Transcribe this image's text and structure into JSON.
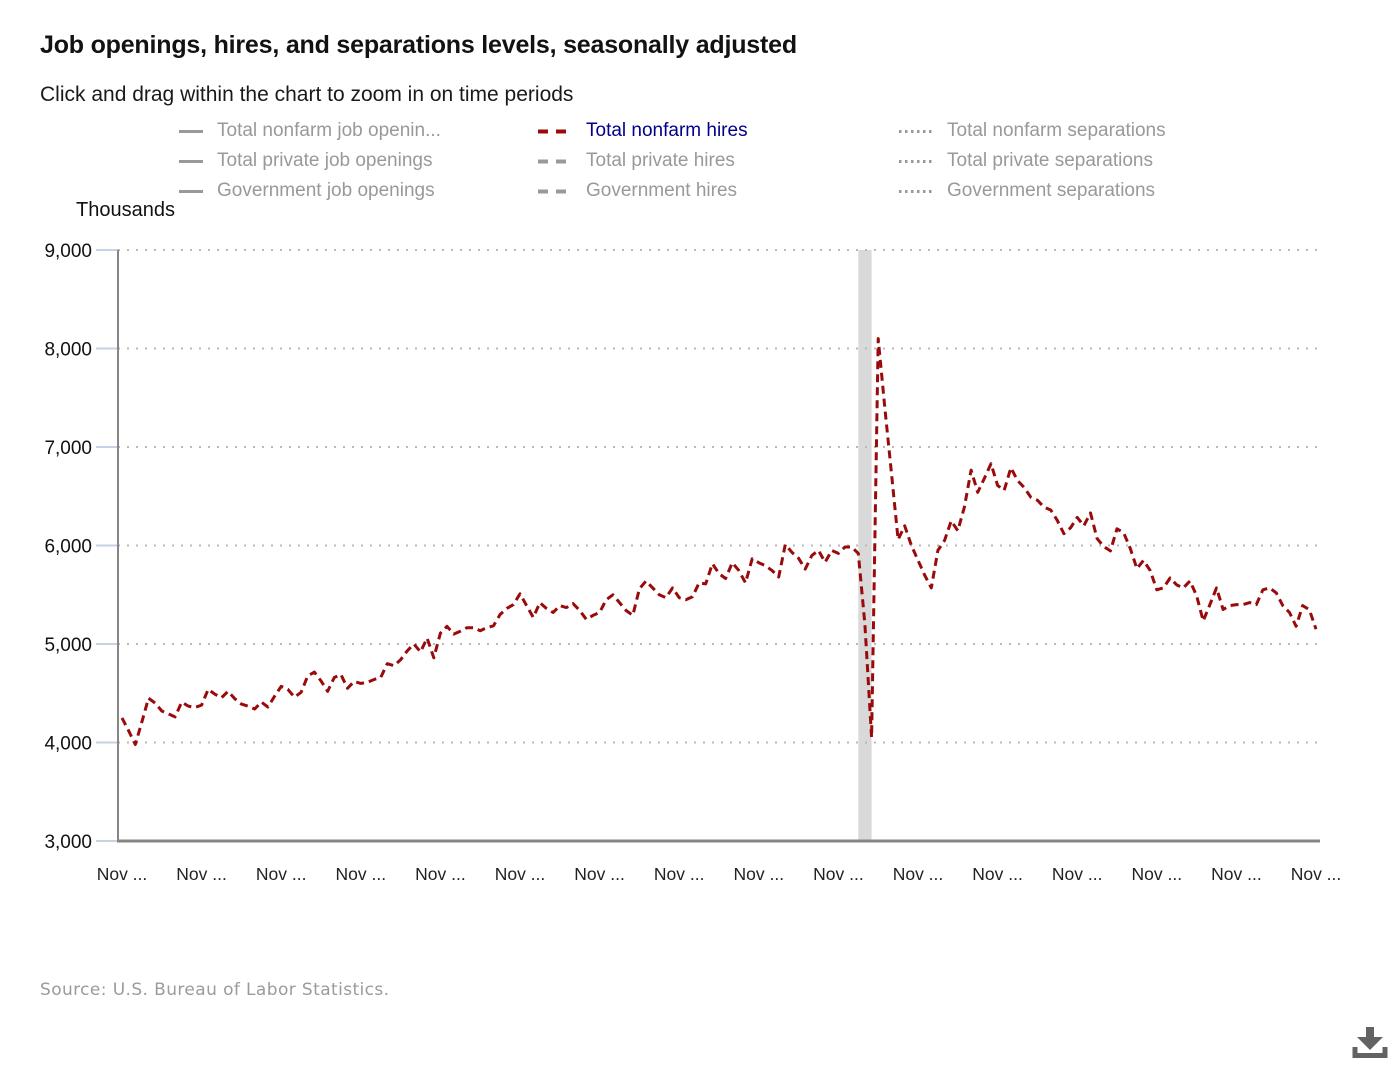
{
  "page": {
    "title": "Job openings, hires, and separations levels, seasonally adjusted",
    "subtitle": "Click and drag within the chart to zoom in on time periods",
    "source": "Source: U.S. Bureau of Labor Statistics."
  },
  "colors": {
    "series_line": "#990b0b",
    "active_legend_text": "#00008b",
    "inactive_legend": "#999999",
    "axis": "#858585",
    "gridline": "#b9b9b9",
    "tick": "#c3d2e6",
    "recession_band": "#d9d9d9",
    "download_icon": "#636363"
  },
  "legend": {
    "columns": [
      {
        "style": "solid",
        "items": [
          {
            "label": "Total nonfarm job openin...",
            "active": false
          },
          {
            "label": "Total private job openings",
            "active": false
          },
          {
            "label": "Government job openings",
            "active": false
          }
        ]
      },
      {
        "style": "dashed",
        "items": [
          {
            "label": "Total nonfarm hires",
            "active": true
          },
          {
            "label": "Total private hires",
            "active": false
          },
          {
            "label": "Government hires",
            "active": false
          }
        ]
      },
      {
        "style": "dotted",
        "items": [
          {
            "label": "Total nonfarm separations",
            "active": false
          },
          {
            "label": "Total private separations",
            "active": false
          },
          {
            "label": "Government separations",
            "active": false
          }
        ]
      }
    ]
  },
  "chart_data": {
    "type": "line",
    "title": "Job openings, hires, and separations levels, seasonally adjusted",
    "unit_label": "Thousands",
    "ylabel": "Thousands",
    "ylim": [
      3000,
      9000
    ],
    "grid": "horizontal-dotted",
    "legend_position": "top",
    "y_ticks": [
      {
        "label": "3,000",
        "value": 3000
      },
      {
        "label": "4,000",
        "value": 4000
      },
      {
        "label": "5,000",
        "value": 5000
      },
      {
        "label": "6,000",
        "value": 6000
      },
      {
        "label": "7,000",
        "value": 7000
      },
      {
        "label": "8,000",
        "value": 8000
      },
      {
        "label": "9,000",
        "value": 9000
      }
    ],
    "x_tick_labels": [
      "Nov ...",
      "Nov ...",
      "Nov ...",
      "Nov ...",
      "Nov ...",
      "Nov ...",
      "Nov ...",
      "Nov ...",
      "Nov ...",
      "Nov ...",
      "Nov ...",
      "Nov ...",
      "Nov ...",
      "Nov ...",
      "Nov ...",
      "Nov ..."
    ],
    "recession_band": {
      "start_index": 111,
      "end_index": 113
    },
    "series": [
      {
        "name": "Total nonfarm hires",
        "style": "dashed",
        "color": "#990b0b",
        "visible": true,
        "values": [
          4250,
          4120,
          3980,
          4210,
          4450,
          4400,
          4320,
          4290,
          4260,
          4410,
          4370,
          4355,
          4380,
          4540,
          4490,
          4455,
          4520,
          4445,
          4390,
          4370,
          4340,
          4410,
          4360,
          4470,
          4570,
          4540,
          4460,
          4510,
          4675,
          4715,
          4625,
          4520,
          4660,
          4690,
          4550,
          4620,
          4600,
          4610,
          4640,
          4660,
          4800,
          4780,
          4840,
          4930,
          5000,
          4920,
          5060,
          4860,
          5110,
          5180,
          5100,
          5130,
          5165,
          5165,
          5135,
          5165,
          5185,
          5300,
          5360,
          5400,
          5510,
          5390,
          5270,
          5420,
          5360,
          5320,
          5390,
          5370,
          5410,
          5340,
          5250,
          5290,
          5320,
          5450,
          5500,
          5420,
          5340,
          5290,
          5560,
          5640,
          5570,
          5500,
          5470,
          5570,
          5470,
          5450,
          5480,
          5620,
          5610,
          5815,
          5715,
          5665,
          5825,
          5745,
          5620,
          5865,
          5825,
          5795,
          5745,
          5680,
          6010,
          5930,
          5870,
          5760,
          5900,
          5950,
          5830,
          5950,
          5920,
          5985,
          5985,
          5920,
          5200,
          4050,
          8100,
          7400,
          6730,
          6060,
          6200,
          6000,
          5850,
          5700,
          5570,
          5950,
          6050,
          6250,
          6150,
          6390,
          6765,
          6540,
          6680,
          6830,
          6610,
          6560,
          6790,
          6660,
          6590,
          6490,
          6460,
          6390,
          6360,
          6255,
          6120,
          6180,
          6285,
          6200,
          6330,
          6070,
          5990,
          5945,
          6170,
          6130,
          5970,
          5765,
          5850,
          5745,
          5550,
          5570,
          5670,
          5600,
          5570,
          5640,
          5490,
          5235,
          5400,
          5570,
          5350,
          5390,
          5400,
          5400,
          5420,
          5400,
          5550,
          5570,
          5520,
          5390,
          5320,
          5180,
          5390,
          5347,
          5150
        ]
      }
    ]
  }
}
